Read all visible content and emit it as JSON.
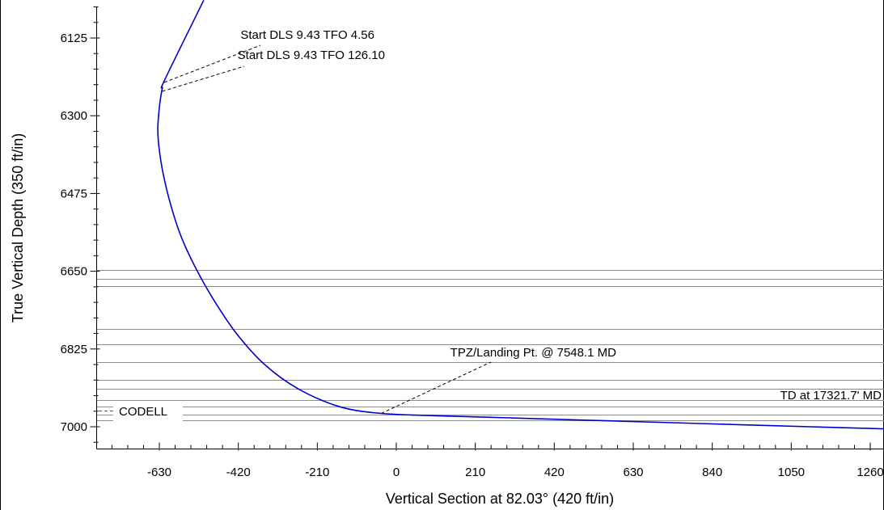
{
  "chart_data": {
    "type": "line",
    "title": "",
    "xlabel": "Vertical Section at 82.03° (420 ft/in)",
    "ylabel": "True Vertical Depth (350 ft/in)",
    "xlim": [
      -630,
      1260
    ],
    "ylim": [
      6125,
      7000
    ],
    "y_inverted": true,
    "grid": false,
    "x_ticks": [
      -630,
      -420,
      -210,
      0,
      210,
      420,
      630,
      840,
      1050,
      1260
    ],
    "y_ticks": [
      6125,
      6300,
      6475,
      6650,
      6825,
      7000
    ],
    "series": [
      {
        "color": "#0000cc",
        "points": [
          [
            -512,
            6040
          ],
          [
            -615,
            6218
          ],
          [
            -622,
            6238
          ],
          [
            -628,
            6268
          ],
          [
            -632,
            6300
          ],
          [
            -634,
            6330
          ],
          [
            -631,
            6370
          ],
          [
            -620,
            6430
          ],
          [
            -600,
            6500
          ],
          [
            -573,
            6570
          ],
          [
            -535,
            6640
          ],
          [
            -485,
            6715
          ],
          [
            -425,
            6790
          ],
          [
            -350,
            6860
          ],
          [
            -260,
            6915
          ],
          [
            -150,
            6955
          ],
          [
            -40,
            6970
          ],
          [
            100,
            6975
          ],
          [
            300,
            6980
          ],
          [
            500,
            6985
          ],
          [
            700,
            6990
          ],
          [
            900,
            6995
          ],
          [
            1100,
            7000
          ],
          [
            1310,
            7005
          ]
        ]
      }
    ],
    "formation_tops_tvd": [
      6647,
      6668,
      6683,
      6780,
      6815,
      6855,
      6895,
      6915,
      6940,
      6955,
      6972,
      6985
    ],
    "annotations": [
      {
        "text": "Start DLS 9.43 TFO 4.56",
        "x": -617,
        "y": 6225
      },
      {
        "text": "Start DLS 9.43 TFO 126.10",
        "x": -622,
        "y": 6245
      },
      {
        "text": "TPZ/Landing Pt. @ 7548.1 MD",
        "x": -40,
        "y": 6970
      },
      {
        "text": "TD at 17321.7' MD",
        "x": 1310,
        "y": 7005
      }
    ],
    "formation_labels": [
      {
        "text": "CODELL",
        "y": 6955
      }
    ]
  }
}
